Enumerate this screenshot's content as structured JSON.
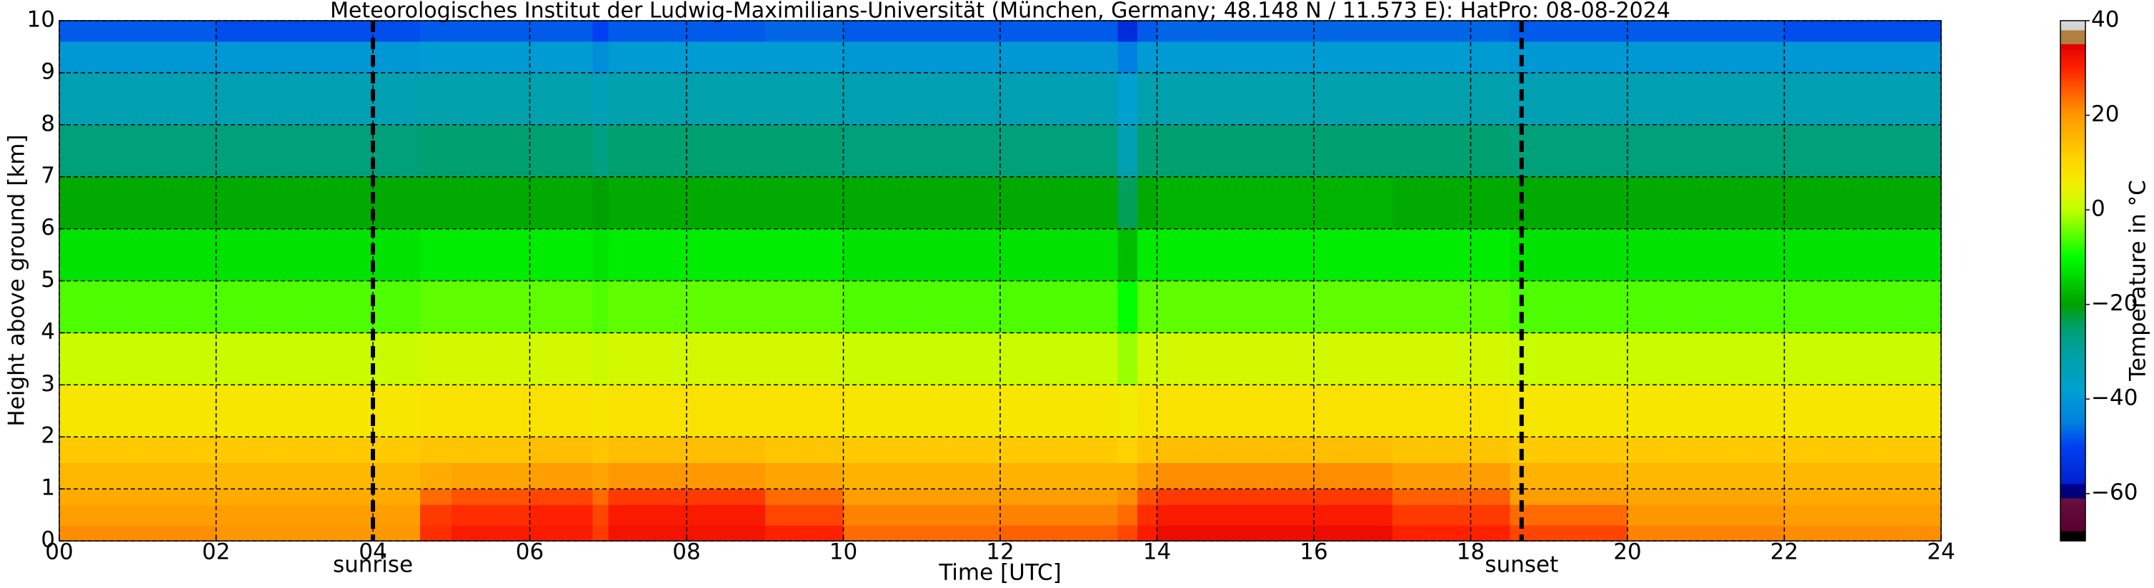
{
  "chart_data": {
    "type": "heatmap",
    "title": "Meteorologisches Institut der Ludwig-Maximilians-Universität (München, Germany; 48.148 N / 11.573 E):    HatPro: 08-08-2024",
    "xlabel": "Time [UTC]",
    "ylabel": "Height above ground [km]",
    "xlim": [
      0,
      24
    ],
    "ylim": [
      0,
      10
    ],
    "xticks": [
      {
        "value": 0,
        "label": "00"
      },
      {
        "value": 2,
        "label": "02"
      },
      {
        "value": 4,
        "label": "04"
      },
      {
        "value": 6,
        "label": "06"
      },
      {
        "value": 8,
        "label": "08"
      },
      10,
      12,
      14,
      16,
      18,
      20,
      22,
      24
    ],
    "yticks": [
      0,
      1,
      2,
      3,
      4,
      5,
      6,
      7,
      8,
      9,
      10
    ],
    "grid": true,
    "x_bins": [
      0,
      2,
      4,
      4.6,
      5,
      6,
      6.8,
      7,
      9,
      10,
      12,
      13.5,
      13.75,
      14,
      16,
      17,
      18.5,
      20,
      22,
      23.7,
      24
    ],
    "y_bins": [
      0,
      0.3,
      0.7,
      1,
      1.5,
      2,
      3,
      4,
      5,
      6,
      7,
      8,
      9,
      9.6,
      10
    ],
    "values": [
      [
        21,
        19,
        17,
        15,
        12,
        7,
        1,
        -6,
        -13,
        -19,
        -26,
        -33,
        -40,
        -48
      ],
      [
        20,
        19,
        17,
        15,
        12,
        7,
        1,
        -6,
        -13,
        -19,
        -26,
        -33,
        -40,
        -49
      ],
      [
        20,
        19,
        17,
        15,
        12,
        7,
        1,
        -6,
        -13,
        -19,
        -26,
        -33,
        -40,
        -49
      ],
      [
        29,
        28,
        24,
        17,
        13,
        8,
        2,
        -5,
        -12,
        -19,
        -25,
        -32,
        -39,
        -48
      ],
      [
        31,
        29,
        26,
        18,
        13,
        8,
        2,
        -5,
        -12,
        -19,
        -25,
        -32,
        -39,
        -48
      ],
      [
        31,
        30,
        27,
        19,
        14,
        8,
        2,
        -5,
        -12,
        -19,
        -25,
        -32,
        -39,
        -48
      ],
      [
        28,
        27,
        24,
        18,
        13,
        7,
        1,
        -6,
        -13,
        -20,
        -27,
        -34,
        -42,
        -50
      ],
      [
        32,
        31,
        28,
        20,
        14,
        8,
        2,
        -5,
        -12,
        -19,
        -25,
        -32,
        -39,
        -48
      ],
      [
        30,
        27,
        24,
        18,
        13,
        8,
        2,
        -5,
        -12,
        -19,
        -25,
        -32,
        -39,
        -47
      ],
      [
        24,
        22,
        19,
        16,
        12,
        7,
        1,
        -6,
        -13,
        -19,
        -26,
        -33,
        -40,
        -48
      ],
      [
        25,
        22,
        19,
        16,
        12,
        7,
        1,
        -6,
        -13,
        -19,
        -26,
        -33,
        -40,
        -48
      ],
      [
        27,
        24,
        21,
        16,
        11,
        6,
        -2,
        -10,
        -17,
        -24,
        -33,
        -38,
        -45,
        -55
      ],
      [
        31,
        29,
        26,
        19,
        13,
        8,
        2,
        -5,
        -12,
        -19,
        -25,
        -32,
        -39,
        -48
      ],
      [
        33,
        31,
        28,
        21,
        14,
        8,
        2,
        -5,
        -12,
        -18,
        -25,
        -32,
        -39,
        -47
      ],
      [
        33,
        31,
        28,
        21,
        14,
        8,
        2,
        -5,
        -12,
        -18,
        -25,
        -32,
        -39,
        -47
      ],
      [
        30,
        28,
        25,
        19,
        13,
        8,
        2,
        -5,
        -12,
        -19,
        -25,
        -32,
        -39,
        -47
      ],
      [
        27,
        24,
        19,
        16,
        12,
        7,
        1,
        -6,
        -13,
        -19,
        -26,
        -33,
        -40,
        -48
      ],
      [
        22,
        20,
        18,
        15,
        12,
        7,
        1,
        -6,
        -13,
        -19,
        -26,
        -33,
        -40,
        -48
      ],
      [
        21,
        19,
        17,
        15,
        12,
        7,
        1,
        -6,
        -13,
        -19,
        -26,
        -33,
        -40,
        -49
      ],
      [
        21,
        19,
        17,
        15,
        12,
        7,
        1,
        -6,
        -13,
        -19,
        -26,
        -33,
        -40,
        -49
      ]
    ],
    "annotations": [
      {
        "text": "sunrise",
        "x": 4.0
      },
      {
        "text": "sunset",
        "x": 18.65
      }
    ],
    "colorbar": {
      "label": "Temperature in °C",
      "lim": [
        -70,
        40
      ],
      "ticks": [
        {
          "value": -60,
          "label": "−60"
        },
        {
          "value": -40,
          "label": "−40"
        },
        {
          "value": -20,
          "label": "−20"
        },
        0,
        20,
        40
      ],
      "colormap": [
        [
          -70,
          "#000000"
        ],
        [
          -68,
          "#000000"
        ],
        [
          -68,
          "#5a0030"
        ],
        [
          -61,
          "#6a1040"
        ],
        [
          -61,
          "#000070"
        ],
        [
          -58,
          "#000090"
        ],
        [
          -58,
          "#0020d0"
        ],
        [
          -50,
          "#0040f0"
        ],
        [
          -45,
          "#0080e0"
        ],
        [
          -38,
          "#00a0d0"
        ],
        [
          -30,
          "#00a0a0"
        ],
        [
          -25,
          "#00a070"
        ],
        [
          -20,
          "#00a000"
        ],
        [
          -15,
          "#00d000"
        ],
        [
          -10,
          "#00ff00"
        ],
        [
          -5,
          "#60ff00"
        ],
        [
          0,
          "#c0ff00"
        ],
        [
          5,
          "#f0f000"
        ],
        [
          10,
          "#ffd800"
        ],
        [
          15,
          "#ffb800"
        ],
        [
          20,
          "#ff9800"
        ],
        [
          25,
          "#ff6000"
        ],
        [
          30,
          "#ff2000"
        ],
        [
          35,
          "#e00000"
        ],
        [
          35,
          "#b08040"
        ],
        [
          38,
          "#b08040"
        ],
        [
          38,
          "#d0d0d0"
        ],
        [
          40,
          "#d8d8d8"
        ]
      ]
    }
  }
}
